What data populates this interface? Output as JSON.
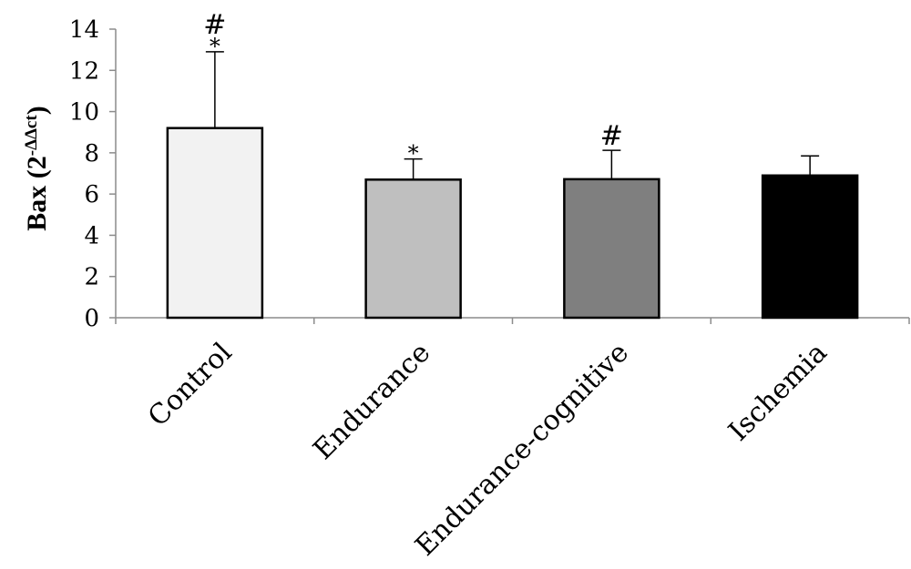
{
  "chart_data": {
    "type": "bar",
    "title": "",
    "xlabel": "",
    "ylabel": {
      "main": "Bax (2",
      "superscript": "-ΔΔct",
      "close": ")"
    },
    "ylim": [
      0,
      14
    ],
    "yticks": [
      0,
      2,
      4,
      6,
      8,
      10,
      12,
      14
    ],
    "grid": false,
    "legend": "none",
    "categories": [
      "Control",
      "Endurance",
      "Endurance-cognitive",
      "Ischemia"
    ],
    "values": [
      9.2,
      6.7,
      6.72,
      6.9
    ],
    "errors": [
      3.7,
      1.0,
      1.4,
      0.95
    ],
    "colors": [
      "#f2f2f2",
      "#bfbfbf",
      "#7f7f7f",
      "#000000"
    ],
    "annotations": [
      {
        "category": "Control",
        "symbols": [
          "*",
          "#"
        ]
      },
      {
        "category": "Endurance",
        "symbols": [
          "*"
        ]
      },
      {
        "category": "Endurance-cognitive",
        "symbols": [
          "#"
        ]
      }
    ]
  }
}
